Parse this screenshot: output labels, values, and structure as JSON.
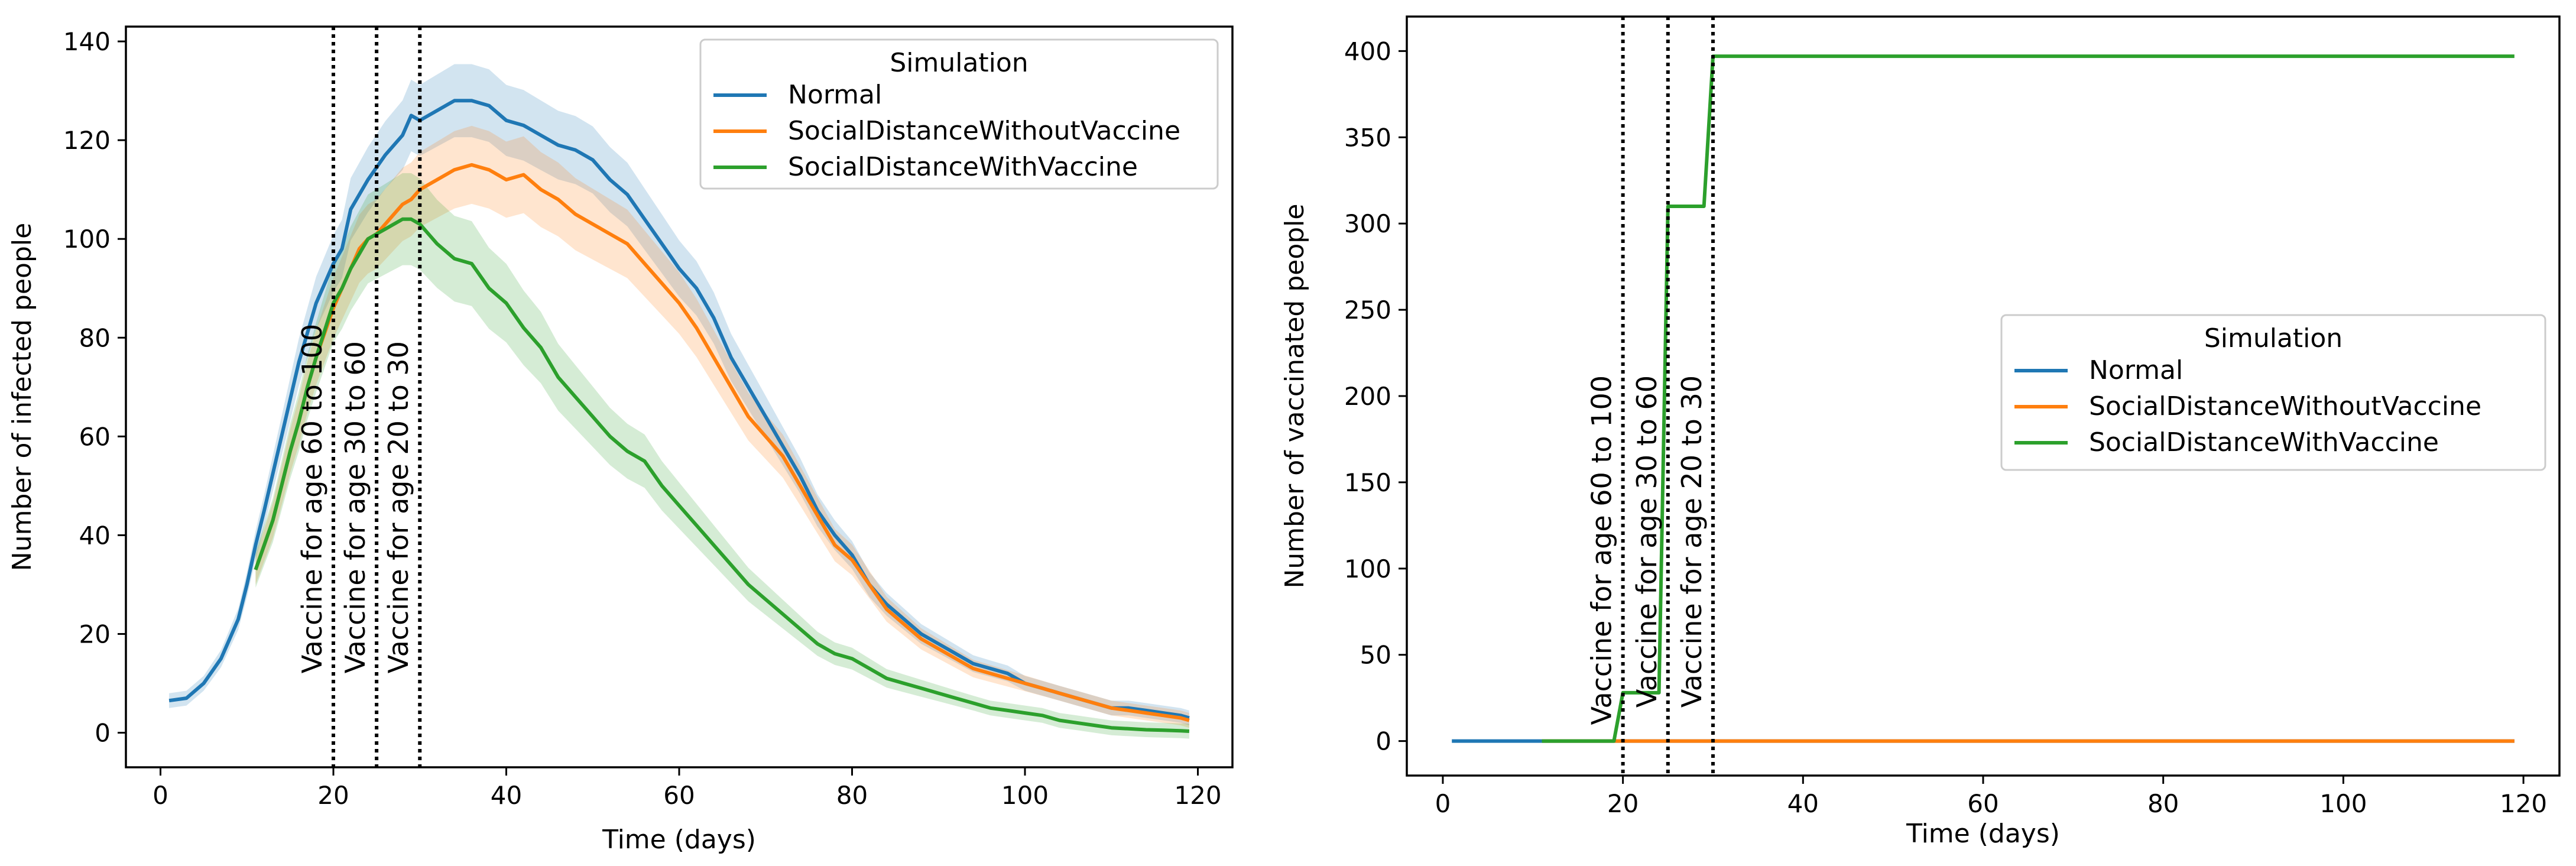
{
  "chart_data": [
    {
      "type": "line",
      "xlabel": "Time (days)",
      "ylabel": "Number of infected people",
      "xlim": [
        -4,
        124
      ],
      "ylim": [
        -7,
        143
      ],
      "xticks": [
        0,
        20,
        40,
        60,
        80,
        100,
        120
      ],
      "yticks": [
        0,
        20,
        40,
        60,
        80,
        100,
        120,
        140
      ],
      "legend": {
        "title": "Simulation",
        "placement": "top-right",
        "entries": [
          "Normal",
          "SocialDistanceWithoutVaccine",
          "SocialDistanceWithVaccine"
        ]
      },
      "vlines": [
        {
          "x": 20,
          "label": "Vaccine for age 60 to 100"
        },
        {
          "x": 25,
          "label": "Vaccine for age 30 to 60"
        },
        {
          "x": 30,
          "label": "Vaccine for age 20 to 30"
        }
      ],
      "series": [
        {
          "name": "Normal",
          "color": "#1f77b4",
          "band": 0.05,
          "points": [
            [
              1,
              6.5
            ],
            [
              3,
              7
            ],
            [
              5,
              10
            ],
            [
              7,
              15
            ],
            [
              9,
              23
            ],
            [
              10,
              30
            ],
            [
              11,
              38
            ],
            [
              12,
              45
            ],
            [
              14,
              60
            ],
            [
              16,
              75
            ],
            [
              18,
              87
            ],
            [
              20,
              95
            ],
            [
              21,
              98
            ],
            [
              22,
              106
            ],
            [
              24,
              112
            ],
            [
              26,
              117
            ],
            [
              28,
              121
            ],
            [
              29,
              125
            ],
            [
              30,
              124
            ],
            [
              32,
              126
            ],
            [
              34,
              128
            ],
            [
              36,
              128
            ],
            [
              38,
              127
            ],
            [
              40,
              124
            ],
            [
              42,
              123
            ],
            [
              44,
              121
            ],
            [
              46,
              119
            ],
            [
              48,
              118
            ],
            [
              50,
              116
            ],
            [
              52,
              112
            ],
            [
              54,
              109
            ],
            [
              56,
              104
            ],
            [
              58,
              99
            ],
            [
              60,
              94
            ],
            [
              62,
              90
            ],
            [
              64,
              84
            ],
            [
              66,
              76
            ],
            [
              68,
              70
            ],
            [
              70,
              64
            ],
            [
              72,
              58
            ],
            [
              74,
              52
            ],
            [
              76,
              45
            ],
            [
              78,
              40
            ],
            [
              80,
              36
            ],
            [
              82,
              30
            ],
            [
              84,
              26
            ],
            [
              86,
              23
            ],
            [
              88,
              20
            ],
            [
              90,
              18
            ],
            [
              92,
              16
            ],
            [
              94,
              14
            ],
            [
              96,
              13
            ],
            [
              98,
              12
            ],
            [
              100,
              10
            ],
            [
              102,
              9
            ],
            [
              104,
              8
            ],
            [
              106,
              7
            ],
            [
              108,
              6
            ],
            [
              110,
              5
            ],
            [
              112,
              5
            ],
            [
              114,
              4.5
            ],
            [
              116,
              4
            ],
            [
              118,
              3.5
            ],
            [
              119,
              3
            ]
          ]
        },
        {
          "name": "SocialDistanceWithoutVaccine",
          "color": "#ff7f0e",
          "band": 0.06,
          "points": [
            [
              11,
              33
            ],
            [
              12,
              38
            ],
            [
              13,
              43
            ],
            [
              14,
              50
            ],
            [
              15,
              57
            ],
            [
              16,
              63
            ],
            [
              17,
              70
            ],
            [
              18,
              76
            ],
            [
              20,
              86
            ],
            [
              21,
              90
            ],
            [
              22,
              94
            ],
            [
              23,
              98
            ],
            [
              24,
              100
            ],
            [
              25,
              101
            ],
            [
              26,
              103
            ],
            [
              27,
              105
            ],
            [
              28,
              107
            ],
            [
              29,
              108
            ],
            [
              30,
              110
            ],
            [
              32,
              112
            ],
            [
              34,
              114
            ],
            [
              36,
              115
            ],
            [
              38,
              114
            ],
            [
              40,
              112
            ],
            [
              42,
              113
            ],
            [
              44,
              110
            ],
            [
              46,
              108
            ],
            [
              48,
              105
            ],
            [
              50,
              103
            ],
            [
              52,
              101
            ],
            [
              54,
              99
            ],
            [
              56,
              95
            ],
            [
              58,
              91
            ],
            [
              60,
              87
            ],
            [
              62,
              82
            ],
            [
              64,
              76
            ],
            [
              66,
              70
            ],
            [
              68,
              64
            ],
            [
              70,
              60
            ],
            [
              72,
              56
            ],
            [
              74,
              50
            ],
            [
              76,
              44
            ],
            [
              78,
              38
            ],
            [
              80,
              35
            ],
            [
              82,
              30
            ],
            [
              84,
              25
            ],
            [
              86,
              22
            ],
            [
              88,
              19
            ],
            [
              90,
              17
            ],
            [
              92,
              15
            ],
            [
              94,
              13
            ],
            [
              96,
              12
            ],
            [
              98,
              11
            ],
            [
              100,
              10
            ],
            [
              102,
              9
            ],
            [
              104,
              8
            ],
            [
              106,
              7
            ],
            [
              108,
              6
            ],
            [
              110,
              5
            ],
            [
              112,
              4.5
            ],
            [
              114,
              4
            ],
            [
              116,
              3.5
            ],
            [
              118,
              3
            ],
            [
              119,
              2.5
            ]
          ]
        },
        {
          "name": "SocialDistanceWithVaccine",
          "color": "#2ca02c",
          "band": 0.08,
          "points": [
            [
              11,
              33
            ],
            [
              12,
              38
            ],
            [
              13,
              43
            ],
            [
              14,
              50
            ],
            [
              15,
              57
            ],
            [
              16,
              63
            ],
            [
              17,
              70
            ],
            [
              18,
              76
            ],
            [
              20,
              87
            ],
            [
              21,
              90
            ],
            [
              22,
              94
            ],
            [
              23,
              97
            ],
            [
              24,
              100
            ],
            [
              25,
              101
            ],
            [
              26,
              102
            ],
            [
              27,
              103
            ],
            [
              28,
              104
            ],
            [
              29,
              104
            ],
            [
              30,
              103
            ],
            [
              31,
              101
            ],
            [
              32,
              99
            ],
            [
              34,
              96
            ],
            [
              36,
              95
            ],
            [
              38,
              90
            ],
            [
              40,
              87
            ],
            [
              42,
              82
            ],
            [
              44,
              78
            ],
            [
              46,
              72
            ],
            [
              48,
              68
            ],
            [
              50,
              64
            ],
            [
              52,
              60
            ],
            [
              54,
              57
            ],
            [
              56,
              55
            ],
            [
              58,
              50
            ],
            [
              60,
              46
            ],
            [
              62,
              42
            ],
            [
              64,
              38
            ],
            [
              66,
              34
            ],
            [
              68,
              30
            ],
            [
              70,
              27
            ],
            [
              72,
              24
            ],
            [
              74,
              21
            ],
            [
              76,
              18
            ],
            [
              78,
              16
            ],
            [
              80,
              15
            ],
            [
              82,
              13
            ],
            [
              84,
              11
            ],
            [
              86,
              10
            ],
            [
              88,
              9
            ],
            [
              90,
              8
            ],
            [
              92,
              7
            ],
            [
              94,
              6
            ],
            [
              96,
              5
            ],
            [
              98,
              4.5
            ],
            [
              100,
              4
            ],
            [
              102,
              3.5
            ],
            [
              104,
              2.5
            ],
            [
              106,
              2
            ],
            [
              108,
              1.5
            ],
            [
              110,
              1
            ],
            [
              112,
              0.8
            ],
            [
              114,
              0.6
            ],
            [
              116,
              0.5
            ],
            [
              118,
              0.4
            ],
            [
              119,
              0.3
            ]
          ]
        }
      ]
    },
    {
      "type": "line",
      "xlabel": "Time (days)",
      "ylabel": "Number of vaccinated people",
      "xlim": [
        -4,
        124
      ],
      "ylim": [
        -20,
        420
      ],
      "xticks": [
        0,
        20,
        40,
        60,
        80,
        100,
        120
      ],
      "yticks": [
        0,
        50,
        100,
        150,
        200,
        250,
        300,
        350,
        400
      ],
      "legend": {
        "title": "Simulation",
        "placement": "center-right",
        "entries": [
          "Normal",
          "SocialDistanceWithoutVaccine",
          "SocialDistanceWithVaccine"
        ]
      },
      "vlines": [
        {
          "x": 20,
          "label": "Vaccine for age 60 to 100"
        },
        {
          "x": 25,
          "label": "Vaccine for age 30 to 60"
        },
        {
          "x": 30,
          "label": "Vaccine for age 20 to 30"
        }
      ],
      "series": [
        {
          "name": "Normal",
          "color": "#1f77b4",
          "points": [
            [
              1,
              0
            ],
            [
              119,
              0
            ]
          ]
        },
        {
          "name": "SocialDistanceWithoutVaccine",
          "color": "#ff7f0e",
          "points": [
            [
              11,
              0
            ],
            [
              119,
              0
            ]
          ]
        },
        {
          "name": "SocialDistanceWithVaccine",
          "color": "#2ca02c",
          "points": [
            [
              11,
              0
            ],
            [
              19,
              0
            ],
            [
              20,
              28
            ],
            [
              24,
              28
            ],
            [
              25,
              310
            ],
            [
              29,
              310
            ],
            [
              30,
              397
            ],
            [
              119,
              397
            ]
          ]
        }
      ]
    }
  ]
}
